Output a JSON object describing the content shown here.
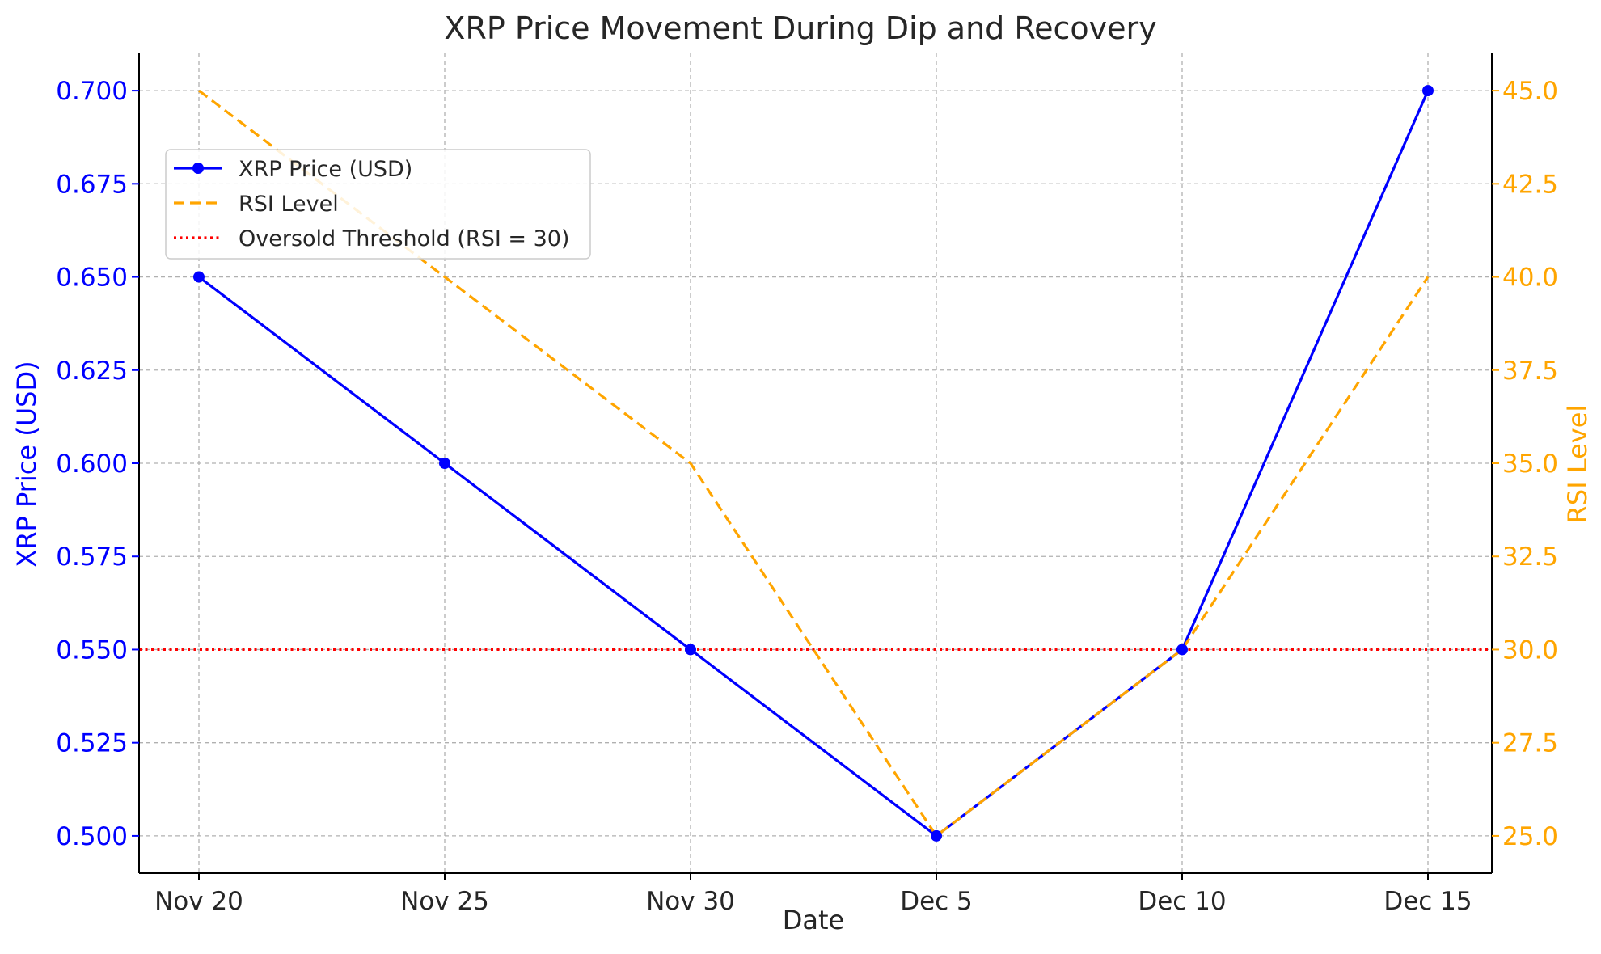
{
  "chart_data": {
    "type": "line",
    "title": "XRP Price Movement During Dip and Recovery",
    "xlabel": "Date",
    "ylabel": "XRP Price (USD)",
    "y2label": "RSI Level",
    "categories": [
      "Nov 20",
      "Nov 25",
      "Nov 30",
      "Dec 5",
      "Dec 10",
      "Dec 15"
    ],
    "ylim": [
      0.49,
      0.71
    ],
    "y2lim": [
      24.0,
      46.0
    ],
    "yticks": [
      0.5,
      0.525,
      0.55,
      0.575,
      0.6,
      0.625,
      0.65,
      0.675,
      0.7
    ],
    "yticklabels": [
      "0.500",
      "0.525",
      "0.550",
      "0.575",
      "0.600",
      "0.625",
      "0.650",
      "0.675",
      "0.700"
    ],
    "y2ticks": [
      25.0,
      27.5,
      30.0,
      32.5,
      35.0,
      37.5,
      40.0,
      42.5,
      45.0
    ],
    "y2ticklabels": [
      "25.0",
      "27.5",
      "30.0",
      "32.5",
      "35.0",
      "37.5",
      "40.0",
      "42.5",
      "45.0"
    ],
    "grid": true,
    "legend_position": "upper-left",
    "series": [
      {
        "name": "XRP Price (USD)",
        "axis": "left",
        "style": "solid-marker",
        "color": "#0000ff",
        "values": [
          0.65,
          0.6,
          0.55,
          0.5,
          0.55,
          0.7
        ]
      },
      {
        "name": "RSI Level",
        "axis": "right",
        "style": "dashed",
        "color": "#ffa500",
        "values": [
          45,
          40,
          35,
          25,
          30,
          40
        ]
      },
      {
        "name": "Oversold Threshold (RSI = 30)",
        "axis": "right",
        "style": "dotted-hline",
        "color": "#ff0000",
        "value": 30
      }
    ],
    "colors": {
      "left_axis": "#0000ff",
      "right_axis": "#ffa500",
      "text": "#262626"
    }
  }
}
